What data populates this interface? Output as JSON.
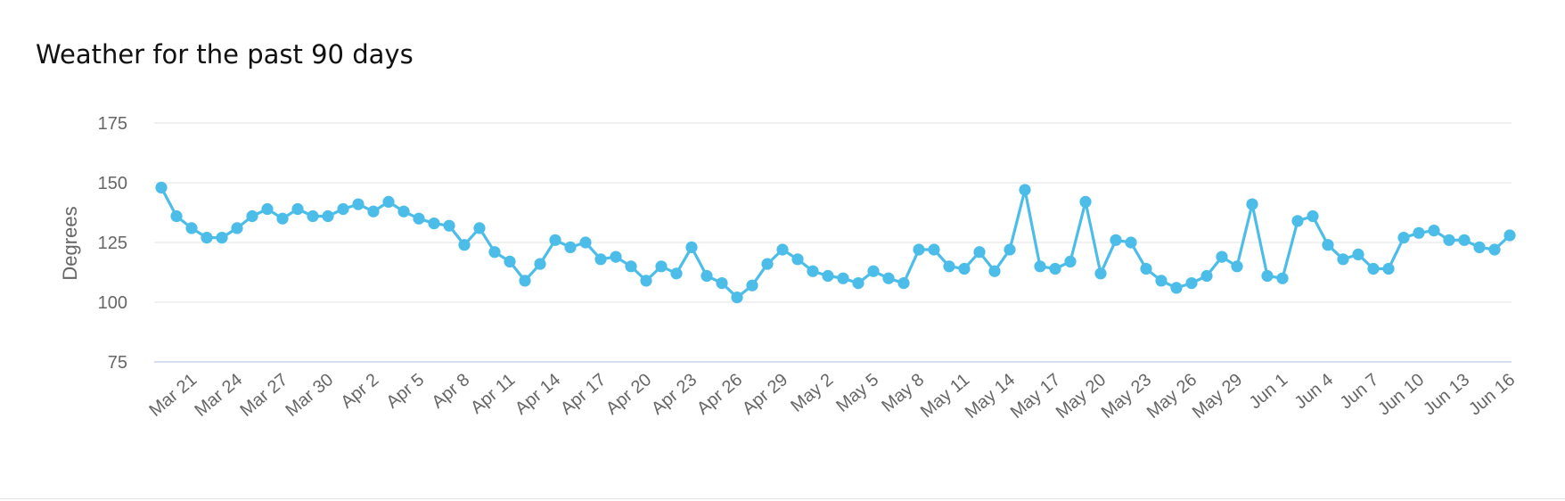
{
  "title": "Weather for the past 90 days",
  "colors": {
    "series": "#4cbde9",
    "grid": "#e3e3e3",
    "baseline": "#c9d6ea",
    "tick_text": "#666666"
  },
  "chart_data": {
    "type": "line",
    "title": "Weather for the past 90 days",
    "ylabel": "Degrees",
    "xlabel": "",
    "ylim": [
      75,
      175
    ],
    "yticks": [
      75,
      100,
      125,
      150,
      175
    ],
    "grid": true,
    "legend": "none",
    "x_tick_labels": [
      "Mar 21",
      "Mar 24",
      "Mar 27",
      "Mar 30",
      "Apr 2",
      "Apr 5",
      "Apr 8",
      "Apr 11",
      "Apr 14",
      "Apr 17",
      "Apr 20",
      "Apr 23",
      "Apr 26",
      "Apr 29",
      "May 2",
      "May 5",
      "May 8",
      "May 11",
      "May 14",
      "May 17",
      "May 20",
      "May 23",
      "May 26",
      "May 29",
      "Jun 1",
      "Jun 4",
      "Jun 7",
      "Jun 10",
      "Jun 13",
      "Jun 16"
    ],
    "x": [
      "Mar 19",
      "Mar 20",
      "Mar 21",
      "Mar 22",
      "Mar 23",
      "Mar 24",
      "Mar 25",
      "Mar 26",
      "Mar 27",
      "Mar 28",
      "Mar 29",
      "Mar 30",
      "Mar 31",
      "Apr 1",
      "Apr 2",
      "Apr 3",
      "Apr 4",
      "Apr 5",
      "Apr 6",
      "Apr 7",
      "Apr 8",
      "Apr 9",
      "Apr 10",
      "Apr 11",
      "Apr 12",
      "Apr 13",
      "Apr 14",
      "Apr 15",
      "Apr 16",
      "Apr 17",
      "Apr 18",
      "Apr 19",
      "Apr 20",
      "Apr 21",
      "Apr 22",
      "Apr 23",
      "Apr 24",
      "Apr 25",
      "Apr 26",
      "Apr 27",
      "Apr 28",
      "Apr 29",
      "Apr 30",
      "May 1",
      "May 2",
      "May 3",
      "May 4",
      "May 5",
      "May 6",
      "May 7",
      "May 8",
      "May 9",
      "May 10",
      "May 11",
      "May 12",
      "May 13",
      "May 14",
      "May 15",
      "May 16",
      "May 17",
      "May 18",
      "May 19",
      "May 20",
      "May 21",
      "May 22",
      "May 23",
      "May 24",
      "May 25",
      "May 26",
      "May 27",
      "May 28",
      "May 29",
      "May 30",
      "May 31",
      "Jun 1",
      "Jun 2",
      "Jun 3",
      "Jun 4",
      "Jun 5",
      "Jun 6",
      "Jun 7",
      "Jun 8",
      "Jun 9",
      "Jun 10",
      "Jun 11",
      "Jun 12",
      "Jun 13",
      "Jun 14",
      "Jun 15",
      "Jun 16"
    ],
    "y": [
      148,
      136,
      131,
      127,
      127,
      131,
      136,
      139,
      135,
      139,
      136,
      136,
      139,
      141,
      138,
      142,
      138,
      135,
      133,
      132,
      124,
      131,
      121,
      117,
      109,
      116,
      126,
      123,
      125,
      118,
      119,
      115,
      109,
      115,
      112,
      123,
      111,
      108,
      102,
      107,
      116,
      122,
      118,
      113,
      111,
      110,
      108,
      113,
      110,
      108,
      122,
      122,
      115,
      114,
      121,
      113,
      122,
      147,
      115,
      114,
      117,
      142,
      112,
      126,
      125,
      114,
      109,
      106,
      108,
      111,
      119,
      115,
      141,
      111,
      110,
      134,
      136,
      124,
      118,
      120,
      114,
      114,
      127,
      129,
      130,
      126,
      126,
      123,
      122,
      128
    ]
  }
}
